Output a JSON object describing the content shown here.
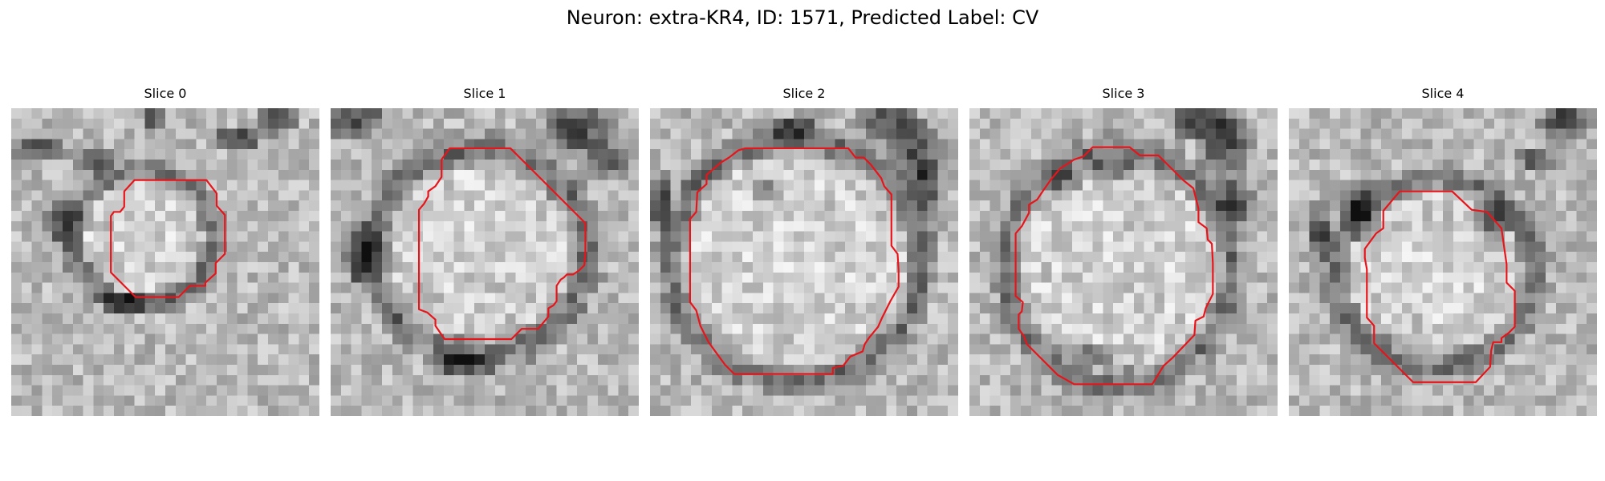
{
  "figure": {
    "title": "Neuron: extra-KR4, ID: 1571, Predicted Label: CV",
    "contour_color": "#e8141a"
  },
  "slices": [
    {
      "label": "Slice 0",
      "contour": [
        [
          12,
          7
        ],
        [
          19,
          7
        ],
        [
          20,
          8.3
        ],
        [
          20,
          9.5
        ],
        [
          20.8,
          10.4
        ],
        [
          20.8,
          14.2
        ],
        [
          19.9,
          15.1
        ],
        [
          19.9,
          16.1
        ],
        [
          18.9,
          17
        ],
        [
          18.9,
          17.3
        ],
        [
          17.4,
          17.3
        ],
        [
          16.7,
          18
        ],
        [
          16.3,
          18.4
        ],
        [
          12.1,
          18.4
        ],
        [
          11.5,
          17.8
        ],
        [
          10.4,
          16.7
        ],
        [
          9.7,
          16
        ],
        [
          9.7,
          12
        ],
        [
          9.7,
          10.5
        ],
        [
          10,
          10.1
        ],
        [
          10.6,
          10.1
        ],
        [
          11,
          9.6
        ],
        [
          11,
          8.1
        ]
      ],
      "ring": {
        "cx": 12.8,
        "cy": 12.5,
        "rx": 6.8,
        "ry": 6.6,
        "width": 1.4
      },
      "dark_patches": [
        [
          3,
          4,
          3,
          1.5
        ],
        [
          8,
          5,
          2.5,
          1.6
        ],
        [
          22,
          3,
          3,
          1.4
        ],
        [
          26,
          1,
          2.5,
          2
        ],
        [
          14,
          1,
          1.2,
          2
        ],
        [
          5,
          11,
          2,
          3
        ],
        [
          11,
          19,
          3,
          1.5
        ]
      ]
    },
    {
      "label": "Slice 1",
      "contour": [
        [
          11.6,
          3.9
        ],
        [
          17.5,
          3.9
        ],
        [
          20.4,
          6.8
        ],
        [
          24.8,
          11.2
        ],
        [
          24.8,
          14
        ],
        [
          24.7,
          15.3
        ],
        [
          24.2,
          15.8
        ],
        [
          23.6,
          16.2
        ],
        [
          23,
          16.2
        ],
        [
          22.7,
          16.5
        ],
        [
          22.4,
          16.7
        ],
        [
          22,
          17.3
        ],
        [
          22,
          18.8
        ],
        [
          21.7,
          19.2
        ],
        [
          21.2,
          19.5
        ],
        [
          21.2,
          20.3
        ],
        [
          20.2,
          21.5
        ],
        [
          18.6,
          21.5
        ],
        [
          17.6,
          22.5
        ],
        [
          12.6,
          22.5
        ],
        [
          11.1,
          22.5
        ],
        [
          10.2,
          21.2
        ],
        [
          10.2,
          20.6
        ],
        [
          9.4,
          19.9
        ],
        [
          8.6,
          19.6
        ],
        [
          8.6,
          14.9
        ],
        [
          8.6,
          11.4
        ],
        [
          8.6,
          9.9
        ],
        [
          9.1,
          9.3
        ],
        [
          9.5,
          8.6
        ],
        [
          9.5,
          8.1
        ],
        [
          10.2,
          7.6
        ],
        [
          10.8,
          6.7
        ],
        [
          10.8,
          5
        ]
      ],
      "ring": {
        "cx": 14.5,
        "cy": 14,
        "rx": 10.5,
        "ry": 10,
        "width": 1.8
      },
      "dark_patches": [
        [
          2,
          1,
          4,
          2.5
        ],
        [
          24,
          2,
          4,
          3
        ],
        [
          27,
          5,
          2.5,
          2
        ],
        [
          3,
          14,
          2,
          4
        ],
        [
          13,
          25,
          4,
          1.5
        ]
      ]
    },
    {
      "label": "Slice 2",
      "contour": [
        [
          9.3,
          3.9
        ],
        [
          19.3,
          3.9
        ],
        [
          20,
          4.8
        ],
        [
          20.8,
          4.8
        ],
        [
          21.5,
          5.5
        ],
        [
          22.5,
          6.8
        ],
        [
          22.8,
          7.6
        ],
        [
          23.5,
          8.4
        ],
        [
          23.5,
          13.4
        ],
        [
          24.1,
          14.2
        ],
        [
          24.2,
          15.8
        ],
        [
          24.2,
          17.4
        ],
        [
          23.4,
          18.8
        ],
        [
          22.6,
          20.4
        ],
        [
          22.2,
          21.3
        ],
        [
          21.3,
          22.4
        ],
        [
          20.9,
          23
        ],
        [
          20.7,
          23.7
        ],
        [
          19.5,
          24.2
        ],
        [
          18.8,
          25.1
        ],
        [
          17.8,
          25.3
        ],
        [
          17.8,
          25.9
        ],
        [
          8.2,
          25.9
        ],
        [
          7.3,
          25
        ],
        [
          5.7,
          22.8
        ],
        [
          4.9,
          21.2
        ],
        [
          4.5,
          19.7
        ],
        [
          3.9,
          18.9
        ],
        [
          3.9,
          10.8
        ],
        [
          4.5,
          10.1
        ],
        [
          4.6,
          8.2
        ],
        [
          5.5,
          7.4
        ],
        [
          5.5,
          6.5
        ],
        [
          6.9,
          5.3
        ],
        [
          7.7,
          4.8
        ],
        [
          8.6,
          4.1
        ]
      ],
      "ring": {
        "cx": 14.2,
        "cy": 14.8,
        "rx": 12.3,
        "ry": 11.8,
        "width": 1.6
      },
      "dark_patches": [
        [
          23,
          1,
          3,
          3
        ],
        [
          26,
          4,
          3,
          3.5
        ],
        [
          27,
          8,
          2,
          3
        ],
        [
          1,
          9,
          1.5,
          3
        ],
        [
          14,
          2,
          3,
          1.2
        ],
        [
          11,
          8,
          1.2,
          1.5
        ]
      ]
    },
    {
      "label": "Slice 3",
      "contour": [
        [
          12,
          3.8
        ],
        [
          15.6,
          3.8
        ],
        [
          16.6,
          4.6
        ],
        [
          18.4,
          4.6
        ],
        [
          20.8,
          7
        ],
        [
          21.8,
          7.8
        ],
        [
          22.3,
          9.8
        ],
        [
          22.3,
          11.1
        ],
        [
          23.1,
          11.7
        ],
        [
          23.2,
          12.8
        ],
        [
          23.6,
          13.2
        ],
        [
          23.7,
          15.1
        ],
        [
          23.7,
          18.1
        ],
        [
          23,
          19.5
        ],
        [
          22.8,
          20.3
        ],
        [
          22,
          20.7
        ],
        [
          21.9,
          22.1
        ],
        [
          19.8,
          24.3
        ],
        [
          18.9,
          25.1
        ],
        [
          17.8,
          26.9
        ],
        [
          10.2,
          26.9
        ],
        [
          9.5,
          26.5
        ],
        [
          8.6,
          26
        ],
        [
          5.6,
          23
        ],
        [
          5.3,
          22.2
        ],
        [
          4.8,
          21.5
        ],
        [
          4.8,
          20.1
        ],
        [
          5.1,
          19.8
        ],
        [
          5.2,
          18.9
        ],
        [
          4.5,
          18.3
        ],
        [
          4.5,
          17.2
        ],
        [
          4.5,
          12.2
        ],
        [
          5.1,
          11.5
        ],
        [
          5.8,
          10.2
        ],
        [
          5.8,
          9.4
        ],
        [
          6.6,
          8.9
        ],
        [
          7.2,
          8
        ],
        [
          7.9,
          7
        ],
        [
          8.8,
          5.9
        ],
        [
          10.2,
          5
        ],
        [
          11.1,
          4.7
        ]
      ],
      "ring": {
        "cx": 14.5,
        "cy": 15.5,
        "rx": 11,
        "ry": 11.5,
        "width": 1.6
      },
      "dark_patches": [
        [
          22,
          1,
          3,
          2.5
        ],
        [
          25,
          3,
          3,
          4
        ],
        [
          26,
          9,
          2,
          3
        ],
        [
          9,
          7,
          2,
          1.5
        ],
        [
          14,
          6,
          3,
          1
        ],
        [
          12,
          24,
          3,
          1
        ]
      ]
    },
    {
      "label": "Slice 4",
      "contour": [
        [
          10.8,
          8.1
        ],
        [
          15.9,
          8.1
        ],
        [
          17.8,
          9.9
        ],
        [
          19.3,
          10.1
        ],
        [
          20.7,
          11.7
        ],
        [
          21.2,
          15.2
        ],
        [
          21.2,
          17
        ],
        [
          22,
          17.8
        ],
        [
          22,
          21.3
        ],
        [
          21.4,
          21.9
        ],
        [
          20.7,
          22.4
        ],
        [
          20.7,
          22.8
        ],
        [
          19.9,
          22.8
        ],
        [
          19.7,
          23.6
        ],
        [
          19.6,
          25.2
        ],
        [
          18.2,
          26.7
        ],
        [
          12.1,
          26.7
        ],
        [
          8.3,
          22.9
        ],
        [
          8.3,
          21.2
        ],
        [
          7.6,
          20.4
        ],
        [
          7.6,
          15.7
        ],
        [
          7.4,
          14.6
        ],
        [
          7.4,
          13.7
        ],
        [
          8.5,
          12.2
        ],
        [
          9.2,
          11.7
        ],
        [
          9.2,
          10
        ]
      ],
      "ring": {
        "cx": 14.3,
        "cy": 16,
        "rx": 9.8,
        "ry": 9.2,
        "width": 1.6
      },
      "dark_patches": [
        [
          27,
          1,
          3,
          3
        ],
        [
          24,
          5,
          2,
          1.5
        ],
        [
          7,
          10,
          2,
          3
        ],
        [
          3,
          12,
          1.5,
          3
        ],
        [
          20,
          11,
          2,
          2
        ]
      ]
    }
  ]
}
